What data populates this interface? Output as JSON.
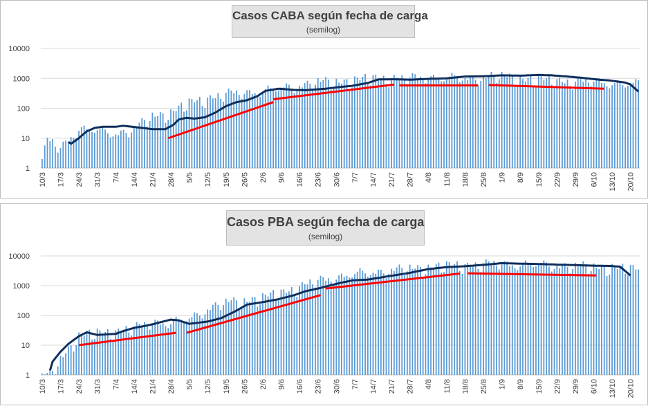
{
  "chart_data": [
    {
      "type": "bar",
      "title": "Casos CABA según fecha de carga",
      "subtitle": "(semilog)",
      "y_scale": "log",
      "ylim": [
        1,
        10000
      ],
      "y_ticks": [
        "1",
        "10",
        "100",
        "1000",
        "10000"
      ],
      "grid": "horizontal",
      "x_tick_labels": [
        "10/3",
        "17/3",
        "24/3",
        "31/3",
        "7/4",
        "14/4",
        "21/4",
        "28/4",
        "5/5",
        "12/5",
        "19/5",
        "26/5",
        "2/6",
        "9/6",
        "16/6",
        "23/6",
        "30/6",
        "7/7",
        "14/7",
        "21/7",
        "28/7",
        "4/8",
        "11/8",
        "18/8",
        "25/8",
        "1/9",
        "8/9",
        "15/9",
        "22/9",
        "29/9",
        "6/10",
        "13/10",
        "20/10"
      ],
      "series": [
        {
          "kind": "bars",
          "color": "#5b9bd5",
          "anchors": [
            [
              0,
              2
            ],
            [
              2,
              10
            ],
            [
              7,
              5
            ],
            [
              14,
              24
            ],
            [
              21,
              20
            ],
            [
              28,
              16
            ],
            [
              35,
              22
            ],
            [
              42,
              60
            ],
            [
              49,
              80
            ],
            [
              56,
              160
            ],
            [
              63,
              240
            ],
            [
              70,
              330
            ],
            [
              77,
              370
            ],
            [
              84,
              420
            ],
            [
              91,
              520
            ],
            [
              98,
              650
            ],
            [
              105,
              820
            ],
            [
              112,
              850
            ],
            [
              119,
              950
            ],
            [
              126,
              1080
            ],
            [
              133,
              1150
            ],
            [
              140,
              1100
            ],
            [
              147,
              1250
            ],
            [
              154,
              1150
            ],
            [
              161,
              1080
            ],
            [
              168,
              1280
            ],
            [
              175,
              1250
            ],
            [
              182,
              1100
            ],
            [
              189,
              980
            ],
            [
              196,
              930
            ],
            [
              203,
              870
            ],
            [
              210,
              870
            ],
            [
              217,
              800
            ],
            [
              221,
              720
            ]
          ]
        },
        {
          "kind": "moving_average",
          "color": "#0e2e5c",
          "anchors": [
            [
              10,
              7.5
            ],
            [
              11,
              6.5
            ],
            [
              14,
              10
            ],
            [
              17,
              17
            ],
            [
              20,
              22
            ],
            [
              23,
              24
            ],
            [
              28,
              24
            ],
            [
              31,
              26
            ],
            [
              38,
              22
            ],
            [
              42,
              20
            ],
            [
              47,
              20
            ],
            [
              50,
              28
            ],
            [
              52,
              42
            ],
            [
              55,
              48
            ],
            [
              58,
              45
            ],
            [
              62,
              50
            ],
            [
              66,
              72
            ],
            [
              70,
              118
            ],
            [
              74,
              160
            ],
            [
              78,
              185
            ],
            [
              82,
              255
            ],
            [
              85,
              380
            ],
            [
              90,
              450
            ],
            [
              96,
              410
            ],
            [
              100,
              400
            ],
            [
              108,
              450
            ],
            [
              114,
              520
            ],
            [
              118,
              560
            ],
            [
              124,
              700
            ],
            [
              128,
              920
            ],
            [
              134,
              930
            ],
            [
              140,
              900
            ],
            [
              147,
              960
            ],
            [
              154,
              1000
            ],
            [
              161,
              1150
            ],
            [
              168,
              1170
            ],
            [
              175,
              1260
            ],
            [
              182,
              1230
            ],
            [
              189,
              1300
            ],
            [
              194,
              1260
            ],
            [
              200,
              1150
            ],
            [
              206,
              1030
            ],
            [
              212,
              900
            ],
            [
              216,
              850
            ],
            [
              219,
              780
            ],
            [
              222,
              720
            ],
            [
              224,
              620
            ],
            [
              227,
              360
            ]
          ]
        },
        {
          "kind": "trend_lines",
          "color": "#ff0000",
          "segments": [
            [
              [
                48,
                10
              ],
              [
                88,
                160
              ]
            ],
            [
              [
                88,
                200
              ],
              [
                134,
                620
              ]
            ],
            [
              [
                136,
                580
              ],
              [
                166,
                580
              ]
            ],
            [
              [
                170,
                600
              ],
              [
                214,
                450
              ]
            ]
          ]
        }
      ]
    },
    {
      "type": "bar",
      "title": "Casos PBA según fecha de carga",
      "subtitle": "(semilog)",
      "y_scale": "log",
      "ylim": [
        1,
        10000
      ],
      "y_ticks": [
        "1",
        "10",
        "100",
        "1000",
        "10000"
      ],
      "grid": "horizontal",
      "x_tick_labels": [
        "10/3",
        "17/3",
        "24/3",
        "31/3",
        "7/4",
        "14/4",
        "21/4",
        "28/4",
        "5/5",
        "12/5",
        "19/5",
        "26/5",
        "2/6",
        "9/6",
        "16/6",
        "23/6",
        "30/6",
        "7/7",
        "14/7",
        "21/7",
        "28/7",
        "4/8",
        "11/8",
        "18/8",
        "25/8",
        "1/9",
        "8/9",
        "15/9",
        "22/9",
        "29/9",
        "6/10",
        "13/10",
        "20/10"
      ],
      "series": [
        {
          "kind": "bars",
          "color": "#5b9bd5",
          "anchors": [
            [
              3,
              1
            ],
            [
              7,
              4
            ],
            [
              14,
              22
            ],
            [
              21,
              28
            ],
            [
              28,
              32
            ],
            [
              35,
              40
            ],
            [
              42,
              70
            ],
            [
              49,
              60
            ],
            [
              56,
              90
            ],
            [
              63,
              180
            ],
            [
              70,
              300
            ],
            [
              77,
              350
            ],
            [
              84,
              420
            ],
            [
              91,
              650
            ],
            [
              98,
              1000
            ],
            [
              105,
              1600
            ],
            [
              112,
              2200
            ],
            [
              119,
              2700
            ],
            [
              126,
              3200
            ],
            [
              133,
              3600
            ],
            [
              140,
              4100
            ],
            [
              147,
              4600
            ],
            [
              154,
              5000
            ],
            [
              161,
              5400
            ],
            [
              168,
              5800
            ],
            [
              175,
              6000
            ],
            [
              182,
              5900
            ],
            [
              189,
              5600
            ],
            [
              196,
              5300
            ],
            [
              203,
              4900
            ],
            [
              210,
              4700
            ],
            [
              217,
              4600
            ],
            [
              221,
              4000
            ]
          ]
        },
        {
          "kind": "moving_average",
          "color": "#0e2e5c",
          "anchors": [
            [
              3,
              1.4
            ],
            [
              4,
              2.8
            ],
            [
              7,
              6
            ],
            [
              10,
              11
            ],
            [
              14,
              20
            ],
            [
              17,
              27
            ],
            [
              21,
              22
            ],
            [
              28,
              24
            ],
            [
              31,
              30
            ],
            [
              35,
              38
            ],
            [
              39,
              44
            ],
            [
              42,
              50
            ],
            [
              46,
              62
            ],
            [
              49,
              72
            ],
            [
              52,
              68
            ],
            [
              56,
              52
            ],
            [
              63,
              62
            ],
            [
              68,
              80
            ],
            [
              73,
              130
            ],
            [
              78,
              230
            ],
            [
              84,
              280
            ],
            [
              90,
              350
            ],
            [
              96,
              480
            ],
            [
              100,
              640
            ],
            [
              106,
              840
            ],
            [
              112,
              1150
            ],
            [
              118,
              1500
            ],
            [
              124,
              1600
            ],
            [
              133,
              2150
            ],
            [
              140,
              2700
            ],
            [
              147,
              3600
            ],
            [
              154,
              4200
            ],
            [
              161,
              4500
            ],
            [
              168,
              5000
            ],
            [
              175,
              5700
            ],
            [
              182,
              5500
            ],
            [
              189,
              5350
            ],
            [
              196,
              5100
            ],
            [
              203,
              4900
            ],
            [
              210,
              4700
            ],
            [
              216,
              4600
            ],
            [
              220,
              4350
            ],
            [
              224,
              2200
            ]
          ]
        },
        {
          "kind": "trend_lines",
          "color": "#ff0000",
          "segments": [
            [
              [
                14,
                10
              ],
              [
                51,
                26
              ]
            ],
            [
              [
                55,
                26
              ],
              [
                106,
                480
              ]
            ],
            [
              [
                108,
                800
              ],
              [
                159,
                2550
              ]
            ],
            [
              [
                162,
                2600
              ],
              [
                211,
                2200
              ]
            ]
          ]
        }
      ]
    }
  ]
}
